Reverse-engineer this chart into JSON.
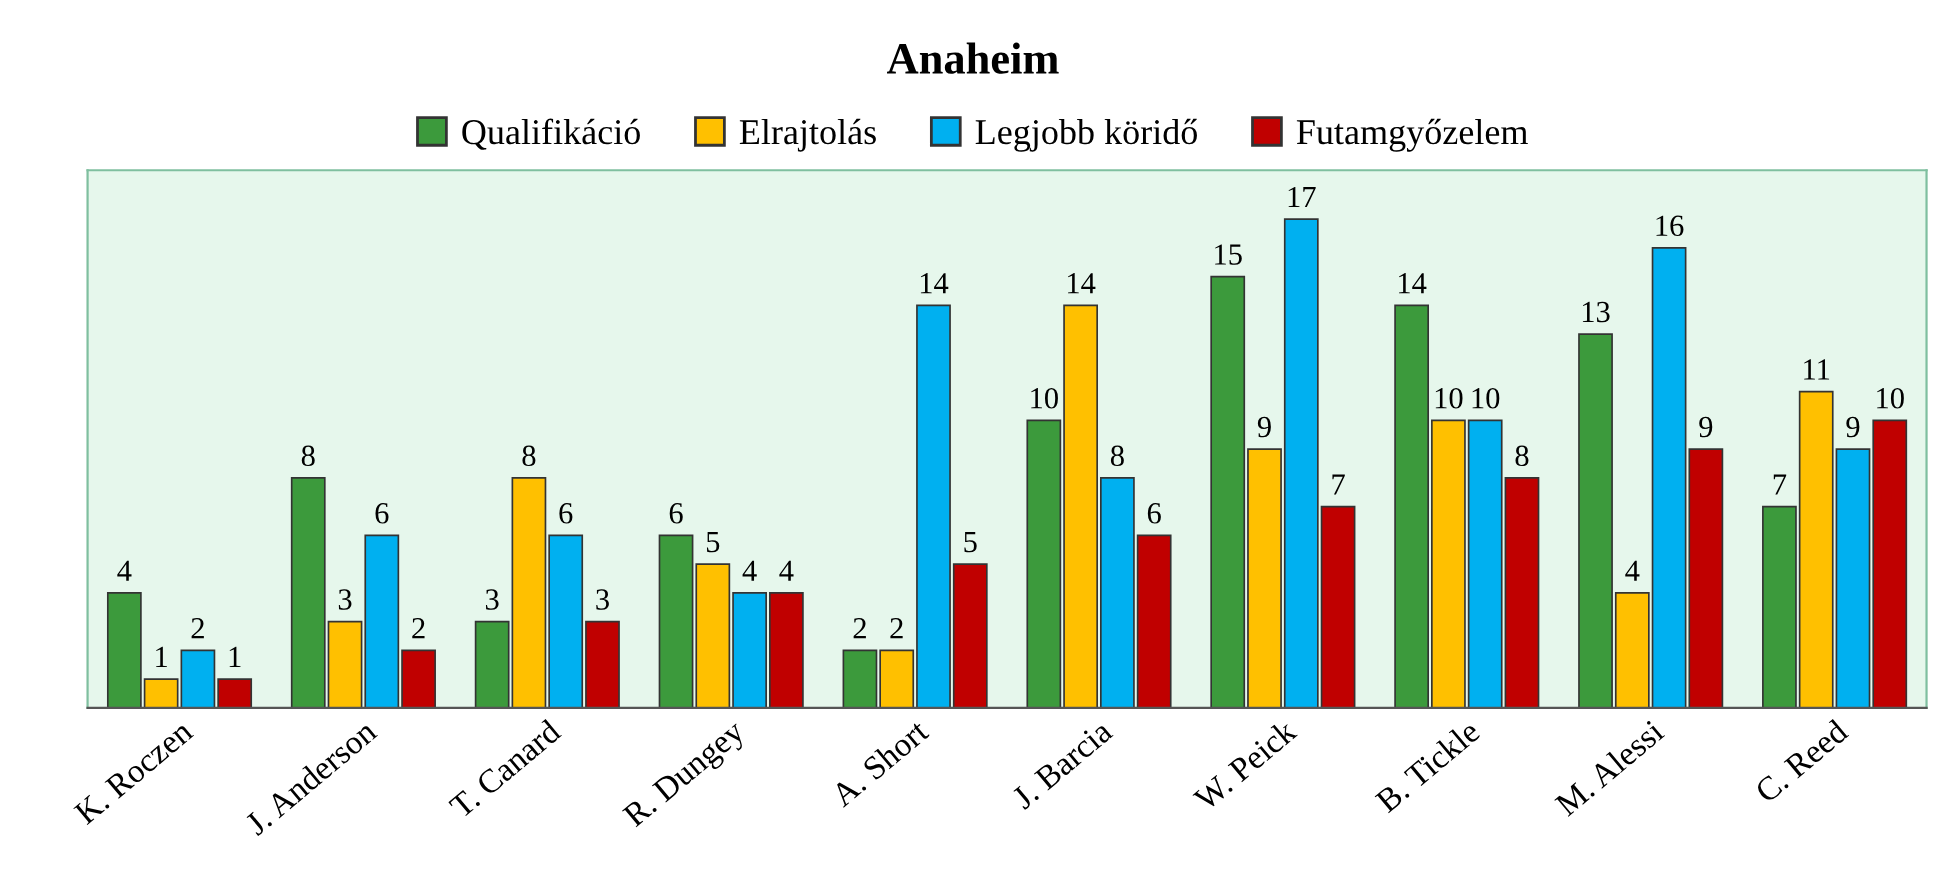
{
  "chart_data": {
    "type": "bar",
    "title": "Anaheim",
    "categories": [
      "K. Roczen",
      "J. Anderson",
      "T. Canard",
      "R. Dungey",
      "A. Short",
      "J. Barcia",
      "W. Peick",
      "B. Tickle",
      "M. Alessi",
      "C. Reed"
    ],
    "series": [
      {
        "name": "Qualifikáció",
        "color": "#3c9a3c",
        "values": [
          4,
          8,
          3,
          6,
          2,
          10,
          15,
          14,
          13,
          7
        ]
      },
      {
        "name": "Elrajtolás",
        "color": "#ffc000",
        "values": [
          1,
          3,
          8,
          5,
          2,
          14,
          9,
          10,
          4,
          11
        ]
      },
      {
        "name": "Legjobb köridő",
        "color": "#00b0f0",
        "values": [
          2,
          6,
          6,
          4,
          14,
          8,
          17,
          10,
          16,
          9
        ]
      },
      {
        "name": "Futamgyőzelem",
        "color": "#c00000",
        "values": [
          1,
          2,
          3,
          4,
          5,
          6,
          7,
          8,
          9,
          10
        ]
      }
    ],
    "data_labels": true,
    "legend": "top",
    "tick_labels": "x",
    "grid": false
  }
}
